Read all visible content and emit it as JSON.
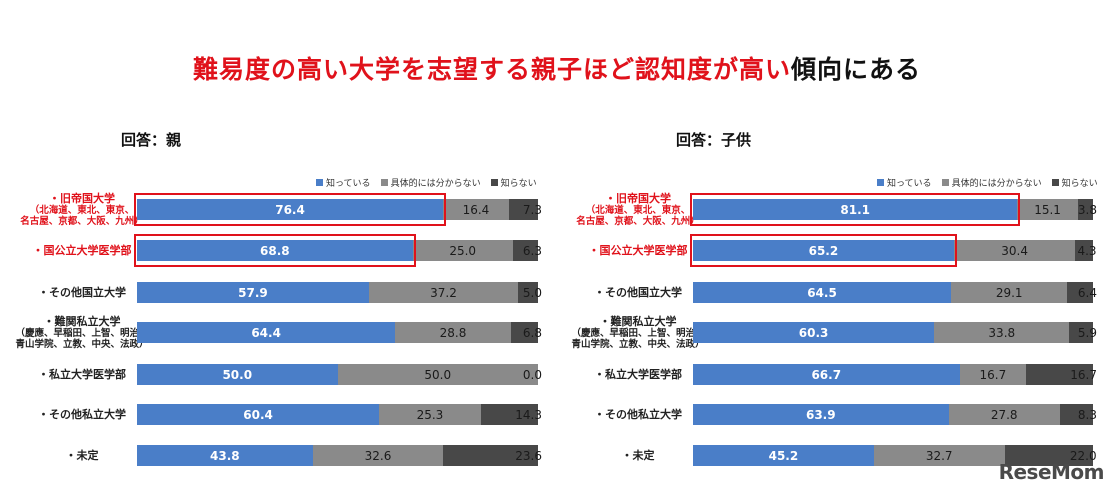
{
  "title_red": "難易度の高い大学を志望する親子ほど認知度が高い",
  "title_black": "傾向にある",
  "logo": "ReseMom",
  "colors": {
    "known": "#4a7ec8",
    "unclear": "#8a8a8a",
    "unknown": "#484848",
    "highlight": "#e0121b"
  },
  "chart_data": [
    {
      "type": "bar",
      "stacked": true,
      "orientation": "horizontal",
      "title": "回答：親",
      "legend_position": "top-right",
      "xlim": [
        0,
        100
      ],
      "categories": [
        {
          "label": "・旧帝国大学",
          "sub": [
            "（北海道、東北、東京、",
            "名古屋、京都、大阪、九州）"
          ]
        },
        {
          "label": "・国公立大学医学部",
          "sub": []
        },
        {
          "label": "・その他国立大学",
          "sub": []
        },
        {
          "label": "・難関私立大学",
          "sub": [
            "（慶應、早稲田、上智、明治、",
            "青山学院、立教、中央、法政）"
          ]
        },
        {
          "label": "・私立大学医学部",
          "sub": []
        },
        {
          "label": "・その他私立大学",
          "sub": []
        },
        {
          "label": "・未定",
          "sub": []
        }
      ],
      "highlighted": [
        0,
        1
      ],
      "series": [
        {
          "name": "知っている",
          "values": [
            76.4,
            68.8,
            57.9,
            64.4,
            50.0,
            60.4,
            43.8
          ]
        },
        {
          "name": "具体的には分からない",
          "values": [
            16.4,
            25.0,
            37.2,
            28.8,
            50.0,
            25.3,
            32.6
          ]
        },
        {
          "name": "知らない",
          "values": [
            7.3,
            6.3,
            5.0,
            6.8,
            0.0,
            14.3,
            23.6
          ]
        }
      ]
    },
    {
      "type": "bar",
      "stacked": true,
      "orientation": "horizontal",
      "title": "回答：子供",
      "legend_position": "top-right",
      "xlim": [
        0,
        100
      ],
      "categories": [
        {
          "label": "・旧帝国大学",
          "sub": [
            "（北海道、東北、東京、",
            "名古屋、京都、大阪、九州）"
          ]
        },
        {
          "label": "・国公立大学医学部",
          "sub": []
        },
        {
          "label": "・その他国立大学",
          "sub": []
        },
        {
          "label": "・難関私立大学",
          "sub": [
            "（慶應、早稲田、上智、明治、",
            "青山学院、立教、中央、法政）"
          ]
        },
        {
          "label": "・私立大学医学部",
          "sub": []
        },
        {
          "label": "・その他私立大学",
          "sub": []
        },
        {
          "label": "・未定",
          "sub": []
        }
      ],
      "highlighted": [
        0,
        1
      ],
      "series": [
        {
          "name": "知っている",
          "values": [
            81.1,
            65.2,
            64.5,
            60.3,
            66.7,
            63.9,
            45.2
          ]
        },
        {
          "name": "具体的には分からない",
          "values": [
            15.1,
            30.4,
            29.1,
            33.8,
            16.7,
            27.8,
            32.7
          ]
        },
        {
          "name": "知らない",
          "values": [
            3.8,
            4.3,
            6.4,
            5.9,
            16.7,
            8.3,
            22.0
          ]
        }
      ]
    }
  ]
}
